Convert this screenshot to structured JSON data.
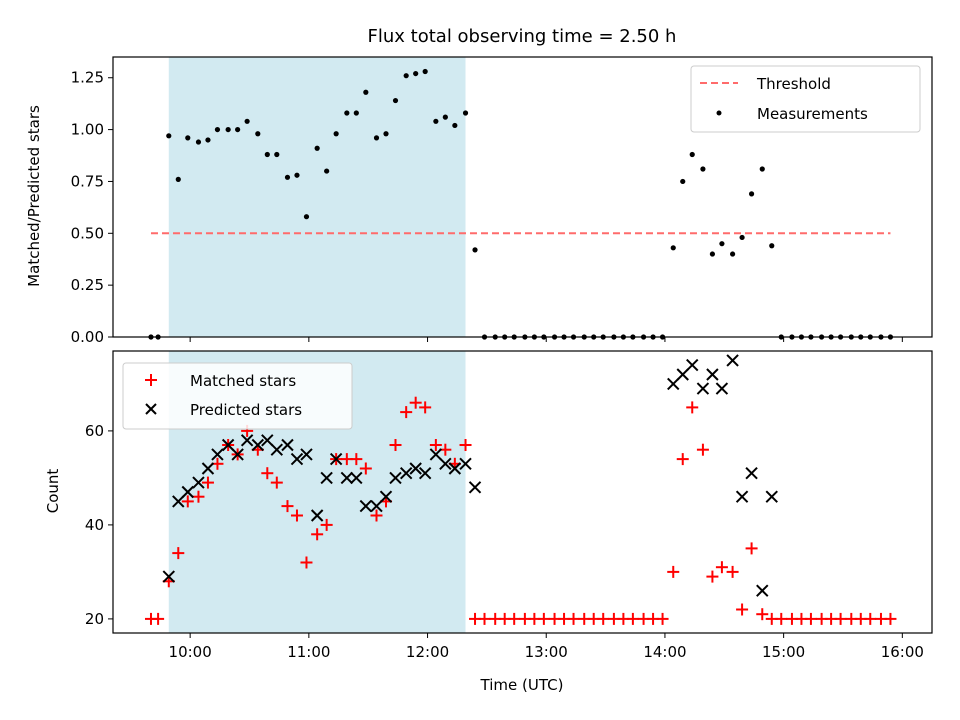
{
  "chart_data": [
    {
      "type": "scatter",
      "title": "Flux total observing time = 2.50 h",
      "xlabel": "",
      "ylabel": "Matched/Predicted stars",
      "ylim": [
        0,
        1.35
      ],
      "yticks": [
        "0.00",
        "0.25",
        "0.50",
        "0.75",
        "1.00",
        "1.25"
      ],
      "ytick_values": [
        0,
        0.25,
        0.5,
        0.75,
        1.0,
        1.25
      ],
      "xlim_hours": [
        9.35,
        16.25
      ],
      "shaded_span_hours": [
        9.82,
        12.32
      ],
      "shaded_color": "#add8e6",
      "threshold": {
        "name": "Threshold",
        "value": 0.5,
        "x_start": 9.67,
        "x_end": 15.9,
        "color": "#ff6b6b"
      },
      "legend_position": "upper right",
      "legend": [
        "Threshold",
        "Measurements"
      ],
      "series": [
        {
          "name": "Measurements",
          "color": "#000000",
          "x": [
            9.67,
            9.73,
            9.82,
            9.9,
            9.98,
            10.07,
            10.15,
            10.23,
            10.32,
            10.4,
            10.48,
            10.57,
            10.65,
            10.73,
            10.82,
            10.9,
            10.98,
            11.07,
            11.15,
            11.23,
            11.32,
            11.4,
            11.48,
            11.57,
            11.65,
            11.73,
            11.82,
            11.9,
            11.98,
            12.07,
            12.15,
            12.23,
            12.32,
            12.4,
            12.48,
            12.57,
            12.65,
            12.73,
            12.82,
            12.9,
            12.98,
            13.07,
            13.15,
            13.23,
            13.32,
            13.4,
            13.48,
            13.57,
            13.65,
            13.73,
            13.82,
            13.9,
            13.98,
            14.07,
            14.15,
            14.23,
            14.32,
            14.4,
            14.48,
            14.57,
            14.65,
            14.73,
            14.82,
            14.9,
            14.98,
            15.07,
            15.15,
            15.23,
            15.32,
            15.4,
            15.48,
            15.57,
            15.65,
            15.73,
            15.82,
            15.9
          ],
          "y": [
            0,
            0,
            0.97,
            0.76,
            0.96,
            0.94,
            0.95,
            1.0,
            1.0,
            1.0,
            1.04,
            0.98,
            0.88,
            0.88,
            0.77,
            0.78,
            0.58,
            0.91,
            0.8,
            0.98,
            1.08,
            1.08,
            1.18,
            0.96,
            0.98,
            1.14,
            1.26,
            1.27,
            1.28,
            1.04,
            1.06,
            1.02,
            1.08,
            0.42,
            0,
            0,
            0,
            0,
            0,
            0,
            0,
            0,
            0,
            0,
            0,
            0,
            0,
            0,
            0,
            0,
            0,
            0,
            0,
            0.43,
            0.75,
            0.88,
            0.81,
            0.4,
            0.45,
            0.4,
            0.48,
            0.69,
            0.81,
            0.44,
            0,
            0,
            0,
            0,
            0,
            0,
            0,
            0,
            0,
            0,
            0,
            0
          ]
        }
      ]
    },
    {
      "type": "scatter",
      "title": "",
      "xlabel": "Time (UTC)",
      "ylabel": "Count",
      "ylim": [
        17,
        77
      ],
      "yticks": [
        "20",
        "40",
        "60"
      ],
      "ytick_values": [
        20,
        40,
        60
      ],
      "xticks": [
        "10:00",
        "11:00",
        "12:00",
        "13:00",
        "14:00",
        "15:00",
        "16:00"
      ],
      "xtick_values": [
        10,
        11,
        12,
        13,
        14,
        15,
        16
      ],
      "xlim_hours": [
        9.35,
        16.25
      ],
      "shaded_span_hours": [
        9.82,
        12.32
      ],
      "legend_position": "upper left",
      "legend": [
        "Matched stars",
        "Predicted stars"
      ],
      "series": [
        {
          "name": "Matched stars",
          "marker": "+",
          "color": "#ff0000",
          "x": [
            9.67,
            9.73,
            9.82,
            9.9,
            9.98,
            10.07,
            10.15,
            10.23,
            10.32,
            10.4,
            10.48,
            10.57,
            10.65,
            10.73,
            10.82,
            10.9,
            10.98,
            11.07,
            11.15,
            11.23,
            11.32,
            11.4,
            11.48,
            11.57,
            11.65,
            11.73,
            11.82,
            11.9,
            11.98,
            12.07,
            12.15,
            12.23,
            12.32,
            12.4,
            12.48,
            12.57,
            12.65,
            12.73,
            12.82,
            12.9,
            12.98,
            13.07,
            13.15,
            13.23,
            13.32,
            13.4,
            13.48,
            13.57,
            13.65,
            13.73,
            13.82,
            13.9,
            13.98,
            14.07,
            14.15,
            14.23,
            14.32,
            14.4,
            14.48,
            14.57,
            14.65,
            14.73,
            14.82,
            14.9,
            14.98,
            15.07,
            15.15,
            15.23,
            15.32,
            15.4,
            15.48,
            15.57,
            15.65,
            15.73,
            15.82,
            15.9
          ],
          "y": [
            20,
            20,
            28,
            34,
            45,
            46,
            49,
            53,
            57,
            55,
            60,
            56,
            51,
            49,
            44,
            42,
            32,
            38,
            40,
            54,
            54,
            54,
            52,
            42,
            45,
            57,
            64,
            66,
            65,
            57,
            56,
            53,
            57,
            20,
            20,
            20,
            20,
            20,
            20,
            20,
            20,
            20,
            20,
            20,
            20,
            20,
            20,
            20,
            20,
            20,
            20,
            20,
            20,
            30,
            54,
            65,
            56,
            29,
            31,
            30,
            22,
            35,
            21,
            20,
            20,
            20,
            20,
            20,
            20,
            20,
            20,
            20,
            20,
            20,
            20,
            20
          ]
        },
        {
          "name": "Predicted stars",
          "marker": "x",
          "color": "#000000",
          "x": [
            9.82,
            9.9,
            9.98,
            10.07,
            10.15,
            10.23,
            10.32,
            10.4,
            10.48,
            10.57,
            10.65,
            10.73,
            10.82,
            10.9,
            10.98,
            11.07,
            11.15,
            11.23,
            11.32,
            11.4,
            11.48,
            11.57,
            11.65,
            11.73,
            11.82,
            11.9,
            11.98,
            12.07,
            12.15,
            12.23,
            12.32,
            12.4,
            14.07,
            14.15,
            14.23,
            14.32,
            14.4,
            14.48,
            14.57,
            14.65,
            14.73,
            14.82,
            14.9
          ],
          "y": [
            29,
            45,
            47,
            49,
            52,
            55,
            57,
            55,
            58,
            57,
            58,
            56,
            57,
            54,
            55,
            42,
            50,
            54,
            50,
            50,
            44,
            44,
            46,
            50,
            51,
            52,
            51,
            55,
            53,
            52,
            53,
            48,
            70,
            72,
            74,
            69,
            72,
            69,
            75,
            46,
            51,
            26,
            46
          ]
        }
      ]
    }
  ]
}
